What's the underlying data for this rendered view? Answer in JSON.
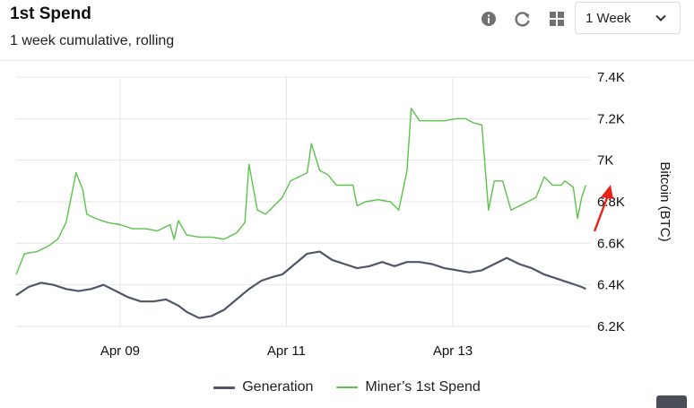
{
  "header": {
    "title": "1st Spend",
    "subtitle": "1 week cumulative, rolling",
    "range_select": {
      "value": "1 Week"
    },
    "icons": [
      "info-icon",
      "refresh-icon",
      "grid-icon",
      "chevron-down-icon"
    ]
  },
  "colors": {
    "generation": "#4f5669",
    "miners_first_spend": "#5cc24b",
    "grid": "#e6e6e6",
    "annotation_arrow": "#e8231a"
  },
  "chart_data": {
    "type": "line",
    "ylabel": "Bitcoin (BTC)",
    "ylim": [
      6200,
      7400
    ],
    "yticks": [
      {
        "value": 6200,
        "label": "6.2K"
      },
      {
        "value": 6400,
        "label": "6.4K"
      },
      {
        "value": 6600,
        "label": "6.6K"
      },
      {
        "value": 6800,
        "label": "6.8K"
      },
      {
        "value": 7000,
        "label": "7K"
      },
      {
        "value": 7200,
        "label": "7.2K"
      },
      {
        "value": 7400,
        "label": "7.4K"
      }
    ],
    "xlim": [
      0,
      6.9
    ],
    "xticks": [
      {
        "value": 1.25,
        "label": "Apr 09"
      },
      {
        "value": 3.25,
        "label": "Apr 11"
      },
      {
        "value": 5.25,
        "label": "Apr 13"
      }
    ],
    "grid": true,
    "legend_position": "bottom",
    "series": [
      {
        "name": "Generation",
        "points": [
          [
            0,
            6350
          ],
          [
            0.15,
            6390
          ],
          [
            0.3,
            6410
          ],
          [
            0.45,
            6400
          ],
          [
            0.6,
            6380
          ],
          [
            0.75,
            6370
          ],
          [
            0.9,
            6380
          ],
          [
            1.05,
            6400
          ],
          [
            1.2,
            6370
          ],
          [
            1.35,
            6340
          ],
          [
            1.5,
            6320
          ],
          [
            1.65,
            6320
          ],
          [
            1.8,
            6330
          ],
          [
            1.95,
            6300
          ],
          [
            2.05,
            6270
          ],
          [
            2.2,
            6240
          ],
          [
            2.35,
            6250
          ],
          [
            2.5,
            6280
          ],
          [
            2.65,
            6330
          ],
          [
            2.8,
            6380
          ],
          [
            2.95,
            6420
          ],
          [
            3.1,
            6440
          ],
          [
            3.2,
            6450
          ],
          [
            3.35,
            6500
          ],
          [
            3.5,
            6550
          ],
          [
            3.65,
            6560
          ],
          [
            3.8,
            6520
          ],
          [
            3.95,
            6500
          ],
          [
            4.1,
            6480
          ],
          [
            4.25,
            6490
          ],
          [
            4.4,
            6510
          ],
          [
            4.55,
            6490
          ],
          [
            4.7,
            6510
          ],
          [
            4.85,
            6510
          ],
          [
            5.0,
            6500
          ],
          [
            5.15,
            6480
          ],
          [
            5.3,
            6470
          ],
          [
            5.45,
            6460
          ],
          [
            5.6,
            6470
          ],
          [
            5.75,
            6500
          ],
          [
            5.9,
            6530
          ],
          [
            6.05,
            6500
          ],
          [
            6.2,
            6480
          ],
          [
            6.35,
            6450
          ],
          [
            6.5,
            6430
          ],
          [
            6.65,
            6410
          ],
          [
            6.8,
            6390
          ],
          [
            6.85,
            6380
          ]
        ]
      },
      {
        "name": "Miner’s 1st Spend",
        "points": [
          [
            0,
            6450
          ],
          [
            0.1,
            6550
          ],
          [
            0.25,
            6560
          ],
          [
            0.4,
            6590
          ],
          [
            0.5,
            6620
          ],
          [
            0.6,
            6700
          ],
          [
            0.72,
            6940
          ],
          [
            0.8,
            6860
          ],
          [
            0.85,
            6740
          ],
          [
            0.95,
            6720
          ],
          [
            1.1,
            6700
          ],
          [
            1.25,
            6690
          ],
          [
            1.4,
            6670
          ],
          [
            1.55,
            6670
          ],
          [
            1.7,
            6660
          ],
          [
            1.85,
            6690
          ],
          [
            1.9,
            6620
          ],
          [
            1.95,
            6710
          ],
          [
            2.05,
            6640
          ],
          [
            2.2,
            6630
          ],
          [
            2.35,
            6630
          ],
          [
            2.5,
            6620
          ],
          [
            2.65,
            6650
          ],
          [
            2.75,
            6700
          ],
          [
            2.8,
            6980
          ],
          [
            2.9,
            6760
          ],
          [
            3.0,
            6740
          ],
          [
            3.1,
            6780
          ],
          [
            3.2,
            6820
          ],
          [
            3.3,
            6900
          ],
          [
            3.4,
            6920
          ],
          [
            3.5,
            6940
          ],
          [
            3.55,
            7080
          ],
          [
            3.65,
            6950
          ],
          [
            3.75,
            6930
          ],
          [
            3.85,
            6880
          ],
          [
            3.95,
            6880
          ],
          [
            4.05,
            6880
          ],
          [
            4.1,
            6780
          ],
          [
            4.2,
            6800
          ],
          [
            4.35,
            6810
          ],
          [
            4.5,
            6800
          ],
          [
            4.6,
            6760
          ],
          [
            4.7,
            6950
          ],
          [
            4.75,
            7250
          ],
          [
            4.85,
            7190
          ],
          [
            5.0,
            7190
          ],
          [
            5.15,
            7190
          ],
          [
            5.3,
            7200
          ],
          [
            5.4,
            7200
          ],
          [
            5.5,
            7180
          ],
          [
            5.6,
            7170
          ],
          [
            5.68,
            6760
          ],
          [
            5.75,
            6900
          ],
          [
            5.85,
            6900
          ],
          [
            5.95,
            6760
          ],
          [
            6.05,
            6780
          ],
          [
            6.15,
            6800
          ],
          [
            6.25,
            6820
          ],
          [
            6.35,
            6920
          ],
          [
            6.45,
            6880
          ],
          [
            6.55,
            6880
          ],
          [
            6.6,
            6900
          ],
          [
            6.7,
            6870
          ],
          [
            6.75,
            6720
          ],
          [
            6.8,
            6820
          ],
          [
            6.85,
            6880
          ]
        ]
      }
    ]
  }
}
